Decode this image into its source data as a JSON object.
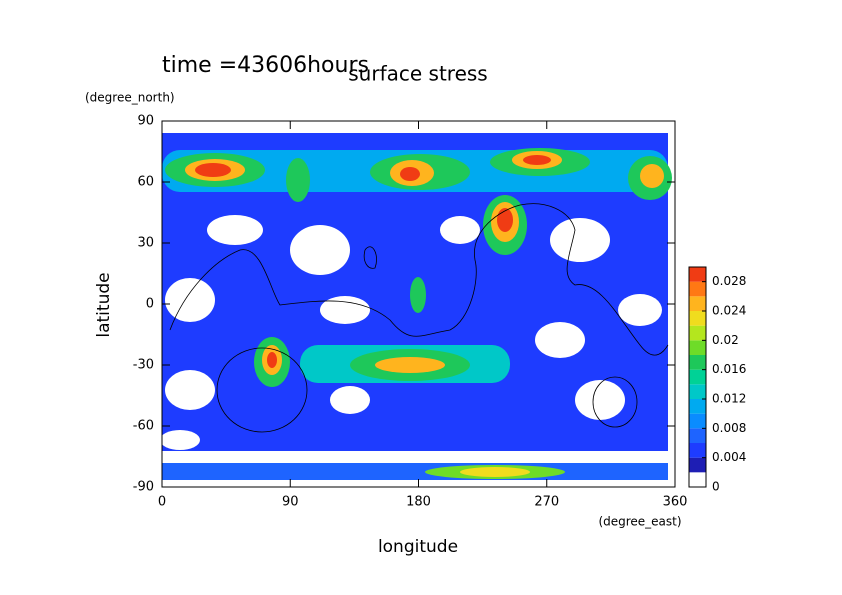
{
  "chart_data": {
    "type": "contour",
    "title": "surface stress",
    "subtitle": "time =43606hours",
    "x_label": "longitude",
    "x_unit": "(degree_east)",
    "y_label": "latitude",
    "y_unit": "(degree_north)",
    "xlim": [
      0,
      360
    ],
    "ylim": [
      -90,
      90
    ],
    "xticks": [
      0,
      90,
      180,
      270,
      360
    ],
    "yticks": [
      90,
      60,
      30,
      0,
      -30,
      -60,
      -90
    ],
    "colorbar": {
      "levels": [
        0,
        0.002,
        0.004,
        0.006,
        0.008,
        0.01,
        0.012,
        0.014,
        0.016,
        0.018,
        0.02,
        0.022,
        0.024,
        0.026,
        0.028,
        0.03
      ],
      "colors": [
        "#ffffff",
        "#1e1eb4",
        "#1e3cff",
        "#1e64ff",
        "#0a8cff",
        "#00aaf0",
        "#00c8c8",
        "#00d296",
        "#1ec85a",
        "#6edc28",
        "#b4e61e",
        "#f0dc1e",
        "#ffb41e",
        "#ff7814",
        "#f03c14"
      ],
      "ticks": [
        0,
        0.004,
        0.008,
        0.012,
        0.016,
        0.02,
        0.024,
        0.028
      ]
    }
  }
}
